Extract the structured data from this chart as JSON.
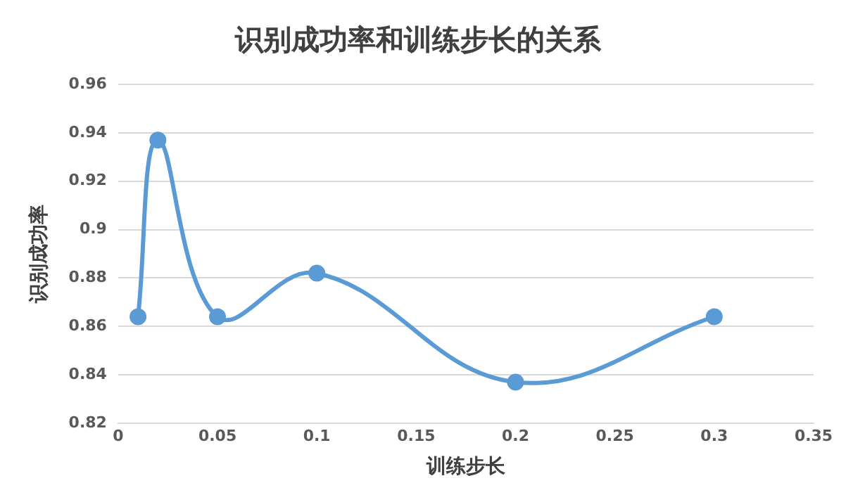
{
  "chart_data": {
    "type": "line",
    "title": "识别成功率和训练步长的关系",
    "xlabel": "训练步长",
    "ylabel": "识别成功率",
    "x": [
      0.01,
      0.02,
      0.05,
      0.1,
      0.2,
      0.3
    ],
    "series": [
      {
        "color": "#5b9bd5",
        "values": [
          0.864,
          0.937,
          0.864,
          0.882,
          0.837,
          0.864
        ]
      }
    ],
    "xlim": [
      0,
      0.35
    ],
    "xticks": [
      0,
      0.05,
      0.1,
      0.15,
      0.2,
      0.25,
      0.3,
      0.35
    ],
    "ylim": [
      0.82,
      0.96
    ],
    "yticks": [
      0.82,
      0.84,
      0.86,
      0.88,
      0.9,
      0.92,
      0.94,
      0.96
    ],
    "grid": "y",
    "marker": "circle",
    "line_style": "solid",
    "legend": false
  }
}
